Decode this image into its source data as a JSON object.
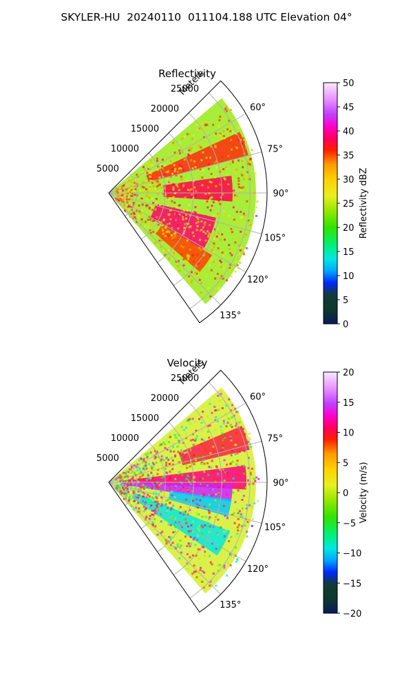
{
  "title": "SKYLER-HU  20240110  011104.188 UTC Elevation 04°",
  "chart_data": [
    {
      "type": "heatmap",
      "title": "Reflectivity",
      "projection": "polar",
      "radial_label": "Meters",
      "radial_ticks": [
        "5000",
        "10000",
        "15000",
        "20000",
        "25000"
      ],
      "radial_range": [
        0,
        28000
      ],
      "azimuth_range": [
        45,
        145
      ],
      "azimuth_ticks": [
        "60°",
        "75°",
        "90°",
        "105°",
        "120°",
        "135°"
      ],
      "grid": true,
      "colorbar": {
        "label": "Reflectivity dBZ",
        "range": [
          0,
          50
        ],
        "ticks": [
          "0",
          "5",
          "10",
          "15",
          "20",
          "25",
          "30",
          "35",
          "40",
          "45",
          "50"
        ]
      }
    },
    {
      "type": "heatmap",
      "title": "Velocity",
      "projection": "polar",
      "radial_label": "Meters",
      "radial_ticks": [
        "5000",
        "10000",
        "15000",
        "20000",
        "25000"
      ],
      "radial_range": [
        0,
        28000
      ],
      "azimuth_range": [
        45,
        145
      ],
      "azimuth_ticks": [
        "60°",
        "75°",
        "90°",
        "105°",
        "120°",
        "135°"
      ],
      "grid": true,
      "colorbar": {
        "label": "Velocity (m/s)",
        "range": [
          -20,
          20
        ],
        "ticks": [
          "−20",
          "−15",
          "−10",
          "−5",
          "0",
          "5",
          "10",
          "15",
          "20"
        ]
      }
    }
  ]
}
